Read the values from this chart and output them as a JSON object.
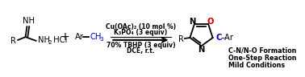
{
  "bg_color": "#ffffff",
  "figsize": [
    3.78,
    0.96
  ],
  "dpi": 100,
  "color_black": "#000000",
  "color_blue": "#0000cc",
  "color_red": "#cc0000",
  "annot1": "C-N/N-O Formation",
  "annot2": "One-Step Reaction",
  "annot3": "Mild Conditions",
  "cond1": "Cu(OAc)₂ (10 mol %)",
  "cond2": "K₃PO₄ (3 equiv)",
  "cond3": "70% TBHP (3 equiv)",
  "cond4": "DCE, r.t."
}
